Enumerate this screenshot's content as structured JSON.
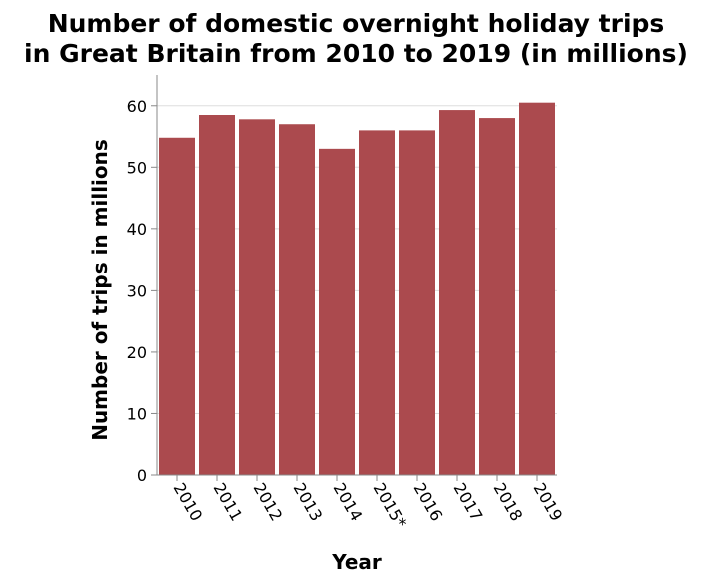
{
  "chart_data": {
    "type": "bar",
    "title": [
      "Number of domestic overnight holiday trips",
      "in Great Britain from 2010 to 2019 (in millions)"
    ],
    "xlabel": "Year",
    "ylabel": "Number of trips in millions",
    "categories": [
      "2010",
      "2011",
      "2012",
      "2013",
      "2014",
      "2015*",
      "2016",
      "2017",
      "2018",
      "2019"
    ],
    "values": [
      54.8,
      58.5,
      57.8,
      57.0,
      53.0,
      56.0,
      56.0,
      59.3,
      58.0,
      60.5
    ],
    "ylim": [
      0,
      65
    ],
    "yticks": [
      0,
      10,
      20,
      30,
      40,
      50,
      60
    ],
    "grid": true,
    "bar_color": "#ab4a4e"
  }
}
